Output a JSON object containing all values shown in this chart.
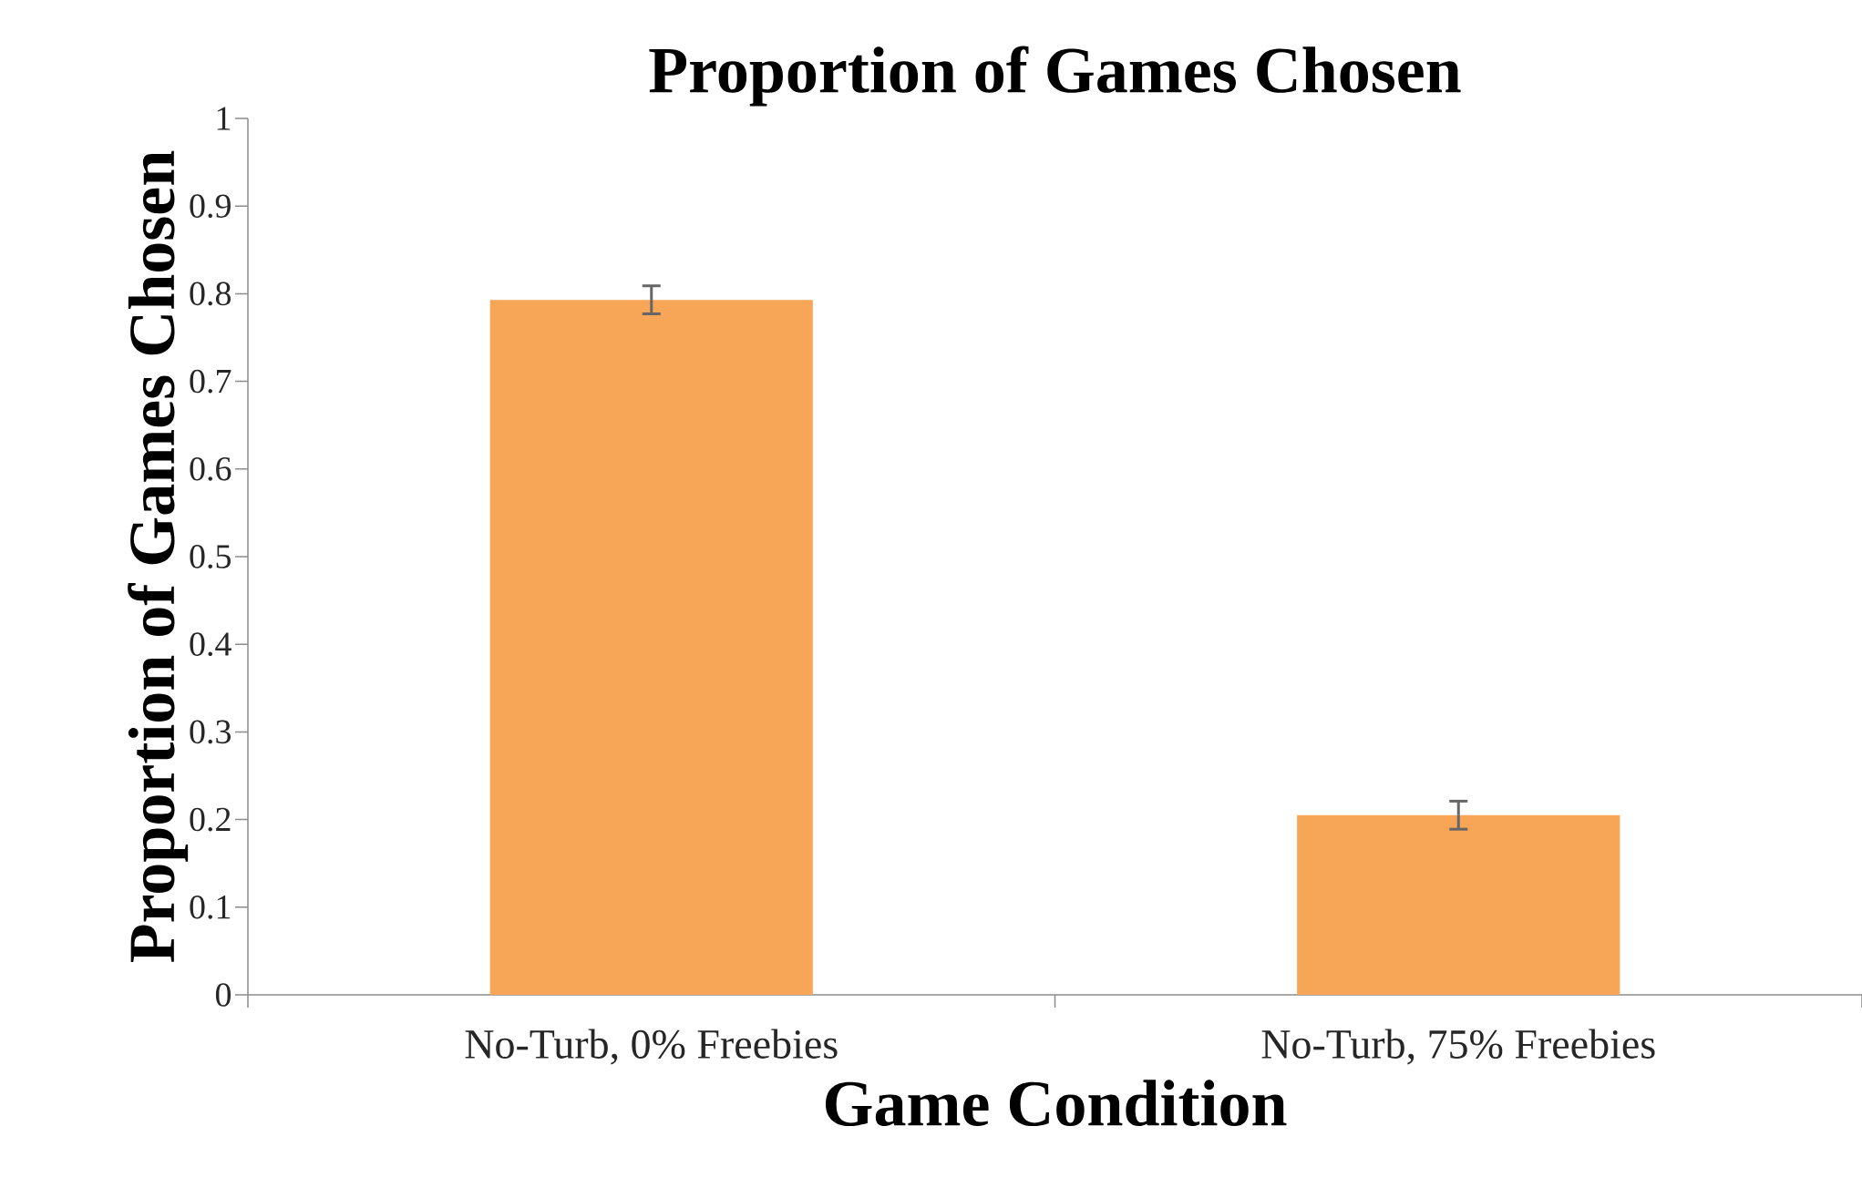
{
  "chart_data": {
    "type": "bar",
    "title": "Proportion of Games Chosen",
    "xlabel": "Game Condition",
    "ylabel": "Proportion of Games Chosen",
    "categories": [
      "No-Turb, 0% Freebies",
      "No-Turb, 75% Freebies"
    ],
    "values": [
      0.793,
      0.205
    ],
    "errors": [
      0.016,
      0.016
    ],
    "color": "#f7a556",
    "ylim": [
      0,
      1
    ],
    "yticks": [
      0,
      0.1,
      0.2,
      0.3,
      0.4,
      0.5,
      0.6,
      0.7,
      0.8,
      0.9,
      1
    ]
  }
}
